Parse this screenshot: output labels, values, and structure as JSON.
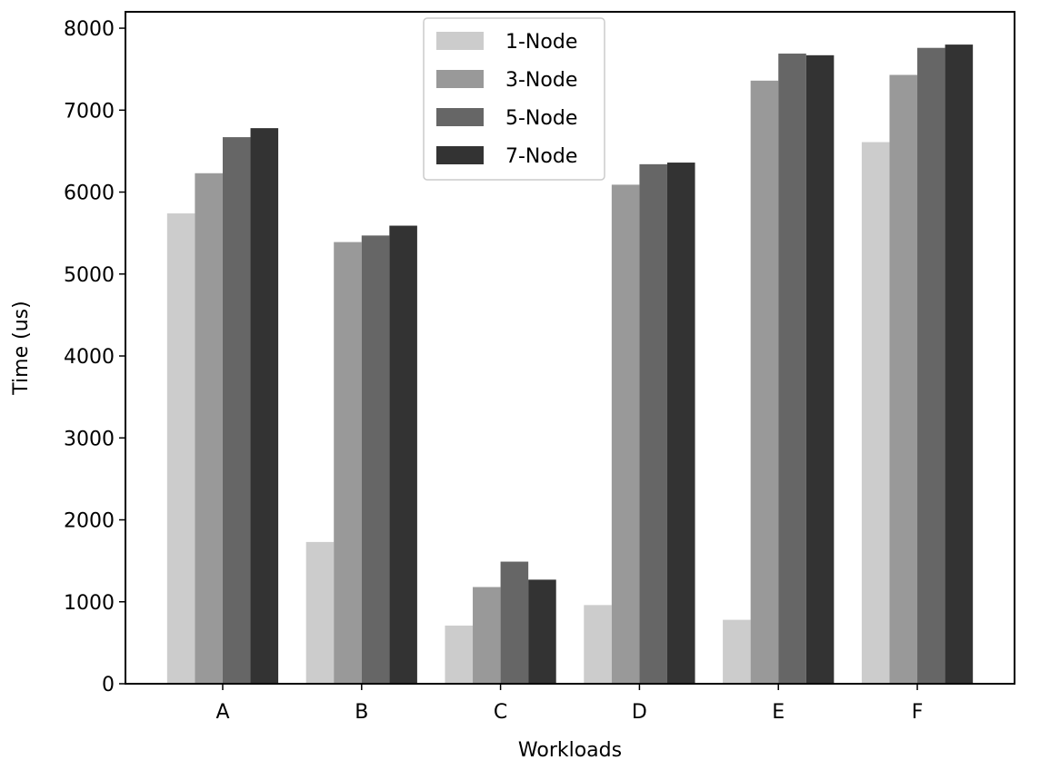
{
  "chart_data": {
    "type": "bar",
    "title": "",
    "xlabel": "Workloads",
    "ylabel": "Time (us)",
    "ylim": [
      0,
      8200
    ],
    "yticks": [
      0,
      1000,
      2000,
      3000,
      4000,
      5000,
      6000,
      7000,
      8000
    ],
    "grid": false,
    "legend_position": "top-center",
    "categories": [
      "A",
      "B",
      "C",
      "D",
      "E",
      "F"
    ],
    "series": [
      {
        "name": "1-Node",
        "color": "#cccccc",
        "values": [
          5740,
          1730,
          710,
          960,
          780,
          6610
        ]
      },
      {
        "name": "3-Node",
        "color": "#999999",
        "values": [
          6230,
          5390,
          1180,
          6090,
          7360,
          7430
        ]
      },
      {
        "name": "5-Node",
        "color": "#666666",
        "values": [
          6670,
          5470,
          1490,
          6340,
          7690,
          7760
        ]
      },
      {
        "name": "7-Node",
        "color": "#333333",
        "values": [
          6780,
          5590,
          1270,
          6360,
          7670,
          7800
        ]
      }
    ]
  }
}
